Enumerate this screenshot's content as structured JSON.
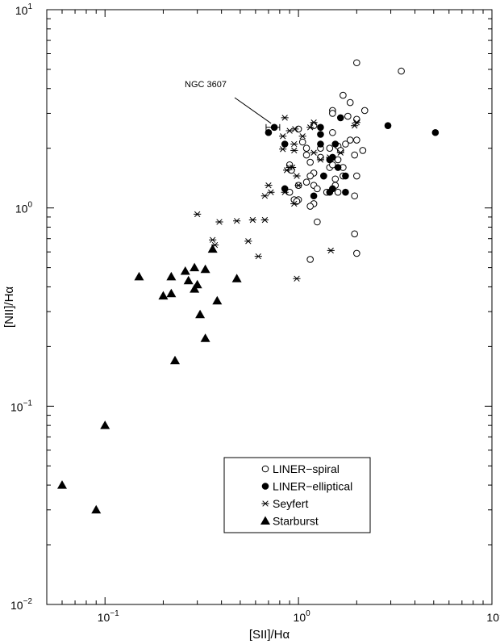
{
  "chart_data": {
    "type": "scatter",
    "xlabel": "[SII]/Hα",
    "ylabel": "[NII]/Hα",
    "xscale": "log",
    "yscale": "log",
    "xlim": [
      0.05,
      10
    ],
    "ylim": [
      0.01,
      10
    ],
    "x_ticks": [
      {
        "value": 0.1,
        "base": "10",
        "exp": "−1"
      },
      {
        "value": 1,
        "base": "10",
        "exp": "0"
      },
      {
        "value": 10,
        "base": "10",
        "exp": "1"
      }
    ],
    "y_ticks": [
      {
        "value": 0.01,
        "base": "10",
        "exp": "−2"
      },
      {
        "value": 0.1,
        "base": "10",
        "exp": "−1"
      },
      {
        "value": 1,
        "base": "10",
        "exp": "0"
      },
      {
        "value": 10,
        "base": "10",
        "exp": "1"
      }
    ],
    "grid": false,
    "legend_position": "bottom-center",
    "annotation": {
      "text": "NGC 3607",
      "x": 0.75,
      "y": 2.55,
      "xerr": [
        0.68,
        0.8
      ]
    },
    "series": [
      {
        "name": "LINER−spiral",
        "marker": "open-circle",
        "points": [
          [
            2.0,
            5.4
          ],
          [
            3.4,
            4.9
          ],
          [
            1.7,
            3.7
          ],
          [
            1.85,
            3.4
          ],
          [
            1.5,
            3.1
          ],
          [
            1.5,
            3.0
          ],
          [
            2.2,
            3.1
          ],
          [
            1.8,
            2.9
          ],
          [
            2.0,
            2.8
          ],
          [
            1.2,
            2.6
          ],
          [
            1.0,
            2.5
          ],
          [
            1.5,
            2.4
          ],
          [
            1.05,
            2.15
          ],
          [
            1.6,
            2.05
          ],
          [
            1.75,
            2.1
          ],
          [
            1.85,
            2.2
          ],
          [
            2.0,
            2.2
          ],
          [
            1.1,
            2.0
          ],
          [
            1.3,
            2.0
          ],
          [
            1.45,
            2.0
          ],
          [
            1.65,
            1.95
          ],
          [
            2.15,
            1.95
          ],
          [
            1.1,
            1.85
          ],
          [
            1.95,
            1.85
          ],
          [
            1.6,
            1.75
          ],
          [
            1.15,
            1.7
          ],
          [
            1.3,
            1.8
          ],
          [
            1.45,
            1.6
          ],
          [
            1.5,
            1.65
          ],
          [
            1.7,
            1.6
          ],
          [
            0.9,
            1.65
          ],
          [
            0.92,
            1.55
          ],
          [
            1.2,
            1.5
          ],
          [
            1.35,
            1.45
          ],
          [
            1.55,
            1.4
          ],
          [
            1.15,
            1.45
          ],
          [
            1.7,
            1.45
          ],
          [
            2.0,
            1.45
          ],
          [
            1.0,
            1.3
          ],
          [
            1.1,
            1.35
          ],
          [
            1.2,
            1.3
          ],
          [
            1.25,
            1.25
          ],
          [
            1.55,
            1.3
          ],
          [
            1.6,
            1.2
          ],
          [
            1.4,
            1.2
          ],
          [
            1.95,
            1.15
          ],
          [
            0.9,
            1.2
          ],
          [
            0.95,
            1.1
          ],
          [
            1.0,
            1.1
          ],
          [
            1.2,
            1.05
          ],
          [
            1.15,
            1.02
          ],
          [
            0.98,
            1.08
          ],
          [
            1.25,
            0.85
          ],
          [
            1.95,
            0.74
          ],
          [
            1.15,
            0.55
          ],
          [
            2.0,
            0.59
          ]
        ]
      },
      {
        "name": "LINER−elliptical",
        "marker": "filled-circle",
        "points": [
          [
            0.75,
            2.55
          ],
          [
            0.7,
            2.4
          ],
          [
            1.3,
            2.55
          ],
          [
            1.65,
            2.85
          ],
          [
            2.9,
            2.6
          ],
          [
            5.1,
            2.4
          ],
          [
            1.3,
            2.35
          ],
          [
            1.3,
            2.1
          ],
          [
            1.55,
            2.1
          ],
          [
            0.85,
            2.1
          ],
          [
            1.5,
            1.8
          ],
          [
            1.45,
            1.75
          ],
          [
            1.35,
            1.45
          ],
          [
            1.6,
            1.6
          ],
          [
            1.75,
            1.45
          ],
          [
            0.85,
            1.25
          ],
          [
            1.5,
            1.25
          ],
          [
            1.45,
            1.2
          ],
          [
            1.75,
            1.2
          ],
          [
            1.2,
            1.15
          ]
        ]
      },
      {
        "name": "Seyfert",
        "marker": "asterisk",
        "points": [
          [
            0.85,
            2.85
          ],
          [
            0.9,
            2.45
          ],
          [
            0.96,
            2.5
          ],
          [
            0.83,
            2.3
          ],
          [
            1.2,
            2.7
          ],
          [
            1.15,
            2.55
          ],
          [
            1.95,
            2.6
          ],
          [
            2.0,
            2.7
          ],
          [
            1.05,
            2.3
          ],
          [
            0.95,
            2.1
          ],
          [
            0.83,
            1.98
          ],
          [
            0.95,
            1.95
          ],
          [
            1.2,
            1.9
          ],
          [
            1.45,
            1.8
          ],
          [
            1.3,
            1.75
          ],
          [
            1.65,
            1.9
          ],
          [
            0.9,
            1.6
          ],
          [
            0.93,
            1.6
          ],
          [
            0.87,
            1.55
          ],
          [
            0.98,
            1.45
          ],
          [
            1.0,
            1.3
          ],
          [
            0.7,
            1.3
          ],
          [
            0.72,
            1.2
          ],
          [
            0.67,
            1.15
          ],
          [
            0.85,
            1.2
          ],
          [
            0.95,
            1.05
          ],
          [
            0.3,
            0.93
          ],
          [
            0.39,
            0.85
          ],
          [
            0.48,
            0.86
          ],
          [
            0.58,
            0.87
          ],
          [
            0.67,
            0.87
          ],
          [
            0.36,
            0.69
          ],
          [
            0.55,
            0.68
          ],
          [
            0.37,
            0.65
          ],
          [
            0.62,
            0.57
          ],
          [
            1.47,
            0.61
          ],
          [
            0.98,
            0.44
          ]
        ]
      },
      {
        "name": "Starburst",
        "marker": "filled-triangle",
        "points": [
          [
            0.36,
            0.62
          ],
          [
            0.15,
            0.45
          ],
          [
            0.22,
            0.45
          ],
          [
            0.26,
            0.48
          ],
          [
            0.29,
            0.5
          ],
          [
            0.33,
            0.49
          ],
          [
            0.27,
            0.43
          ],
          [
            0.3,
            0.41
          ],
          [
            0.29,
            0.39
          ],
          [
            0.2,
            0.36
          ],
          [
            0.22,
            0.37
          ],
          [
            0.48,
            0.44
          ],
          [
            0.38,
            0.34
          ],
          [
            0.31,
            0.29
          ],
          [
            0.33,
            0.22
          ],
          [
            0.23,
            0.17
          ],
          [
            0.1,
            0.08
          ],
          [
            0.06,
            0.04
          ],
          [
            0.09,
            0.03
          ]
        ]
      }
    ]
  }
}
